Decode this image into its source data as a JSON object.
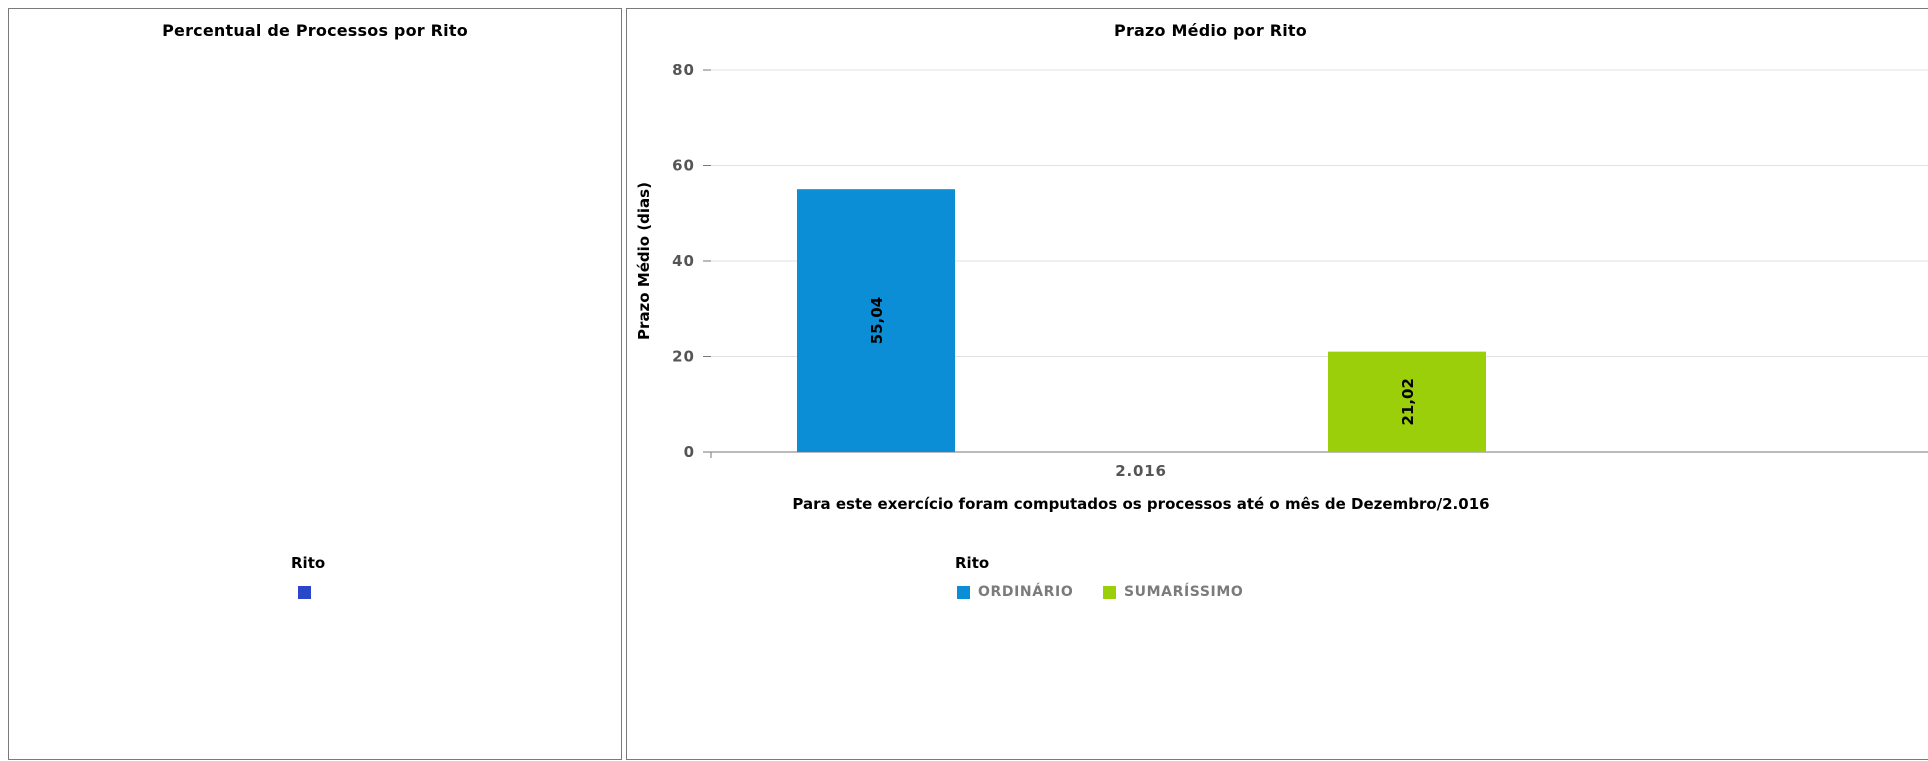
{
  "left_chart": {
    "title": "Percentual de Processos por Rito",
    "legend_title": "Rito",
    "legend_items": [
      {
        "label": "",
        "color": "#2a47c9"
      }
    ]
  },
  "chart_data": {
    "type": "bar",
    "title": "Prazo Médio por Rito",
    "categories": [
      "2.016"
    ],
    "series": [
      {
        "name": "ORDINÁRIO",
        "values": [
          55.04
        ],
        "label": "55,04",
        "color": "#0b8ed6"
      },
      {
        "name": "SUMARÍSSIMO",
        "values": [
          21.02
        ],
        "label": "21,02",
        "color": "#9bcf0a"
      }
    ],
    "ylabel": "Prazo Médio (dias)",
    "xlabel": "Para este exercício foram computados os processos até o mês de Dezembro/2.016",
    "ylim": [
      0,
      80
    ],
    "yticks": [
      "0",
      "20",
      "40",
      "60",
      "80"
    ],
    "grid": true,
    "legend_title": "Rito",
    "legend_position": "bottom-center"
  }
}
